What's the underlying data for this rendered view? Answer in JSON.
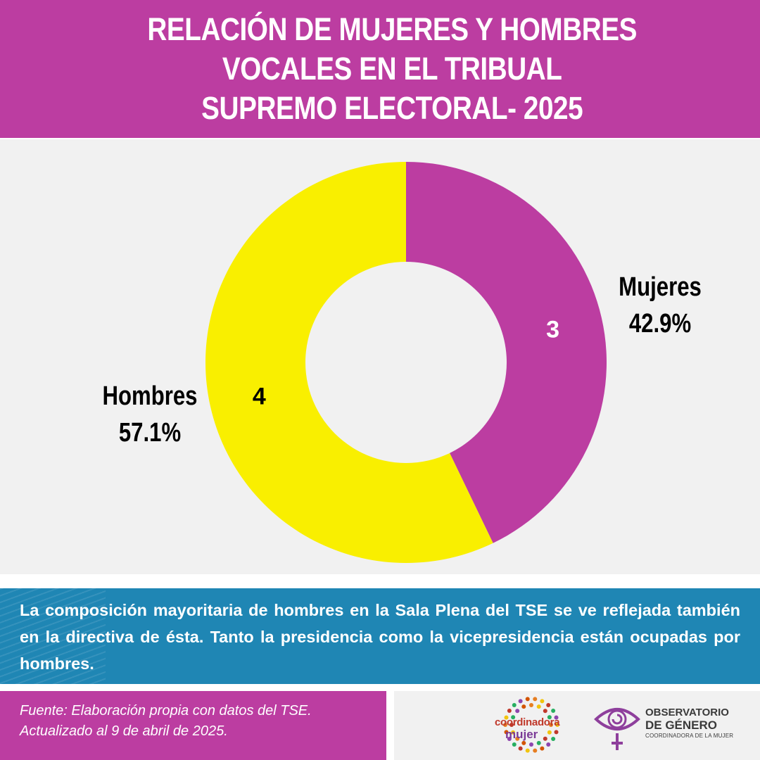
{
  "header": {
    "title_line1": "RELACIÓN DE MUJERES Y HOMBRES  VOCALES EN EL TRIBUAL",
    "title_line2": "SUPREMO ELECTORAL- 2025"
  },
  "chart_data": {
    "type": "pie",
    "donut": true,
    "categories": [
      "Mujeres",
      "Hombres"
    ],
    "values": [
      3,
      4
    ],
    "percent_labels": [
      "42.9%",
      "57.1%"
    ],
    "colors": [
      "#bc3da1",
      "#f9ef00"
    ],
    "value_label_colors": [
      "#ffffff",
      "#000000"
    ],
    "start": "12 o'clock, clockwise"
  },
  "note": {
    "text": "La composición mayoritaria de hombres en la Sala Plena del TSE se ve reflejada también en  la directiva de ésta. Tanto la presidencia como la vicepresidencia están ocupadas por hombres."
  },
  "source": {
    "line1": "Fuente:  Elaboración propia con datos del  TSE.",
    "line2": "Actualizado al 9 de abril de 2025."
  },
  "logos": {
    "coordinadora": {
      "word1": "coordinadora",
      "word2": "mujer"
    },
    "observatorio": {
      "line1": "OBSERVATORIO",
      "line2": "DE GÉNERO",
      "line3": "COORDINADORA DE LA MUJER",
      "icon": "eye-venus-icon"
    }
  },
  "colors": {
    "brand_magenta": "#bc3da1",
    "note_blue": "#1f86b4",
    "panel_gray": "#f1f1f1"
  }
}
